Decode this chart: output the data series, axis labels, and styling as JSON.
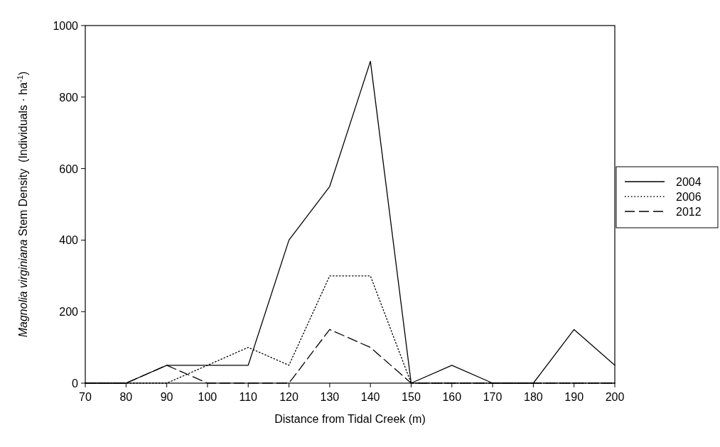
{
  "chart_data": {
    "type": "line",
    "xlabel": "Distance from Tidal Creek (m)",
    "ylabel": "Magnolia virginiana Stem Density  (Individuals · ha$^{-1}$)",
    "x": [
      70,
      80,
      90,
      100,
      110,
      120,
      130,
      140,
      150,
      160,
      170,
      180,
      190,
      200
    ],
    "xlim": [
      70,
      200
    ],
    "xticks": [
      70,
      80,
      90,
      100,
      110,
      120,
      130,
      140,
      150,
      160,
      170,
      180,
      190,
      200
    ],
    "ylim": [
      0,
      1000
    ],
    "yticks": [
      0,
      200,
      400,
      600,
      800,
      1000
    ],
    "legend": "right",
    "grid": false,
    "marker": "none",
    "series": [
      {
        "name": "2004",
        "color": "#000000",
        "line_style": "solid",
        "values": [
          0,
          0,
          50,
          50,
          50,
          400,
          550,
          900,
          0,
          50,
          0,
          0,
          150,
          50
        ]
      },
      {
        "name": "2006",
        "color": "#000000",
        "line_style": "dotted",
        "values": [
          0,
          0,
          0,
          50,
          100,
          50,
          300,
          300,
          0,
          0,
          0,
          0,
          0,
          0
        ]
      },
      {
        "name": "2012",
        "color": "#000000",
        "line_style": "dashed",
        "values": [
          0,
          0,
          50,
          0,
          0,
          0,
          150,
          100,
          0,
          0,
          0,
          0,
          0,
          0
        ]
      }
    ]
  }
}
